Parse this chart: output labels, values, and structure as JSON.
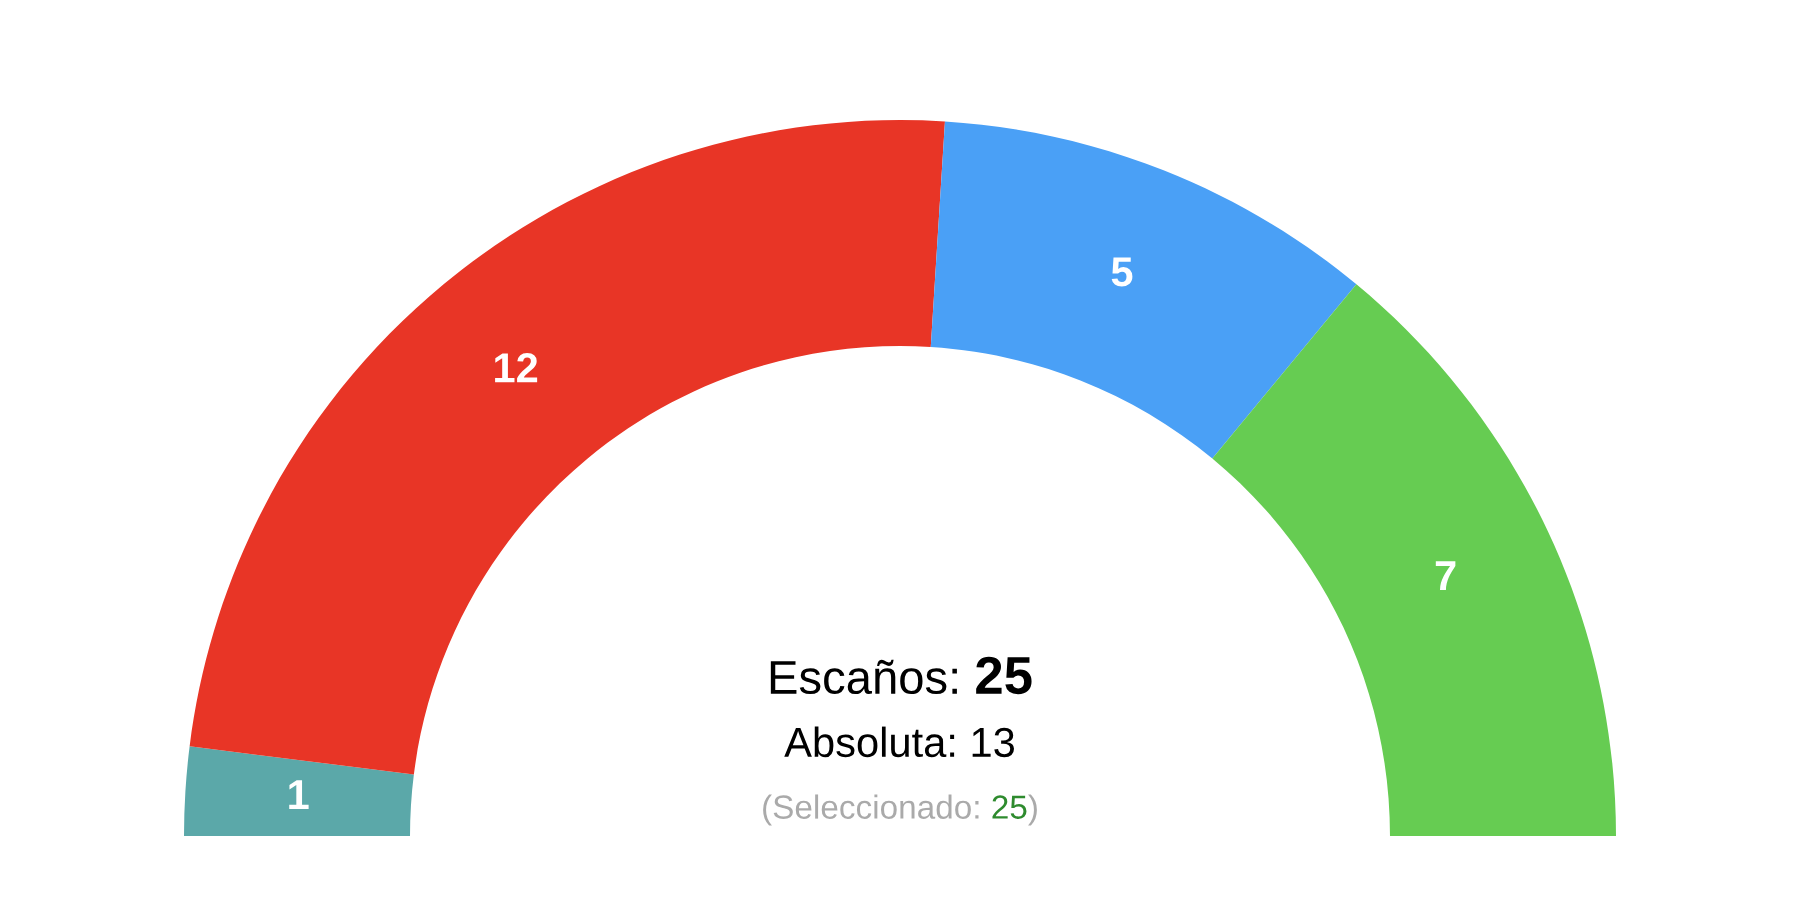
{
  "chart_data": {
    "type": "donut",
    "categories": [
      null,
      null,
      null,
      null
    ],
    "values": [
      1,
      12,
      5,
      7
    ],
    "colors": [
      "#5ba8a9",
      "#e83526",
      "#4aa0f6",
      "#66cc52"
    ],
    "data_labels": true,
    "annotations": [
      "Escaños: 25",
      "Absoluta: 13",
      "(Seleccionado: 25)"
    ]
  }
}
